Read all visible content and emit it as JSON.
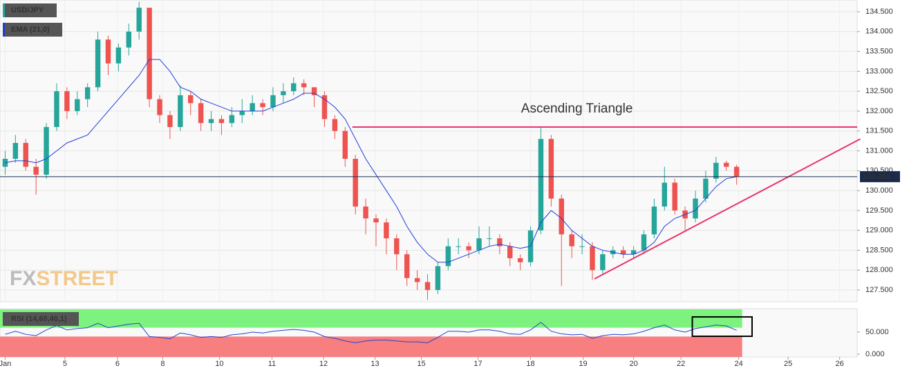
{
  "chart_data": {
    "type": "candlestick",
    "title": "USD/JPY",
    "indicator": "EMA (21,0)",
    "logo": {
      "part1": "FX",
      "part2": "STREET"
    },
    "up_color": "#26a69a",
    "down_color": "#ef5350",
    "ema_color": "#1f3fd6",
    "xlim": [
      -0.5,
      82.7
    ],
    "xticks": [
      {
        "value": 0,
        "label": "Jan"
      },
      {
        "value": 5.8,
        "label": "5"
      },
      {
        "value": 10.9,
        "label": "6"
      },
      {
        "value": 15.3,
        "label": "8"
      },
      {
        "value": 20.8,
        "label": "10"
      },
      {
        "value": 25.9,
        "label": "11"
      },
      {
        "value": 30.9,
        "label": "12"
      },
      {
        "value": 35.9,
        "label": "13"
      },
      {
        "value": 40.4,
        "label": "15"
      },
      {
        "value": 45.9,
        "label": "17"
      },
      {
        "value": 51,
        "label": "18"
      },
      {
        "value": 56.1,
        "label": "19"
      },
      {
        "value": 61,
        "label": "20"
      },
      {
        "value": 65.6,
        "label": "22"
      },
      {
        "value": 71.2,
        "label": "24"
      },
      {
        "value": 76,
        "label": "25"
      },
      {
        "value": 81,
        "label": "26"
      }
    ],
    "ylim": [
      127.205,
      134.795
    ],
    "yticks": [
      {
        "value": 127.5,
        "label": "127.500"
      },
      {
        "value": 128,
        "label": "128.000"
      },
      {
        "value": 128.5,
        "label": "128.500"
      },
      {
        "value": 129,
        "label": "129.000"
      },
      {
        "value": 129.5,
        "label": "129.500"
      },
      {
        "value": 130,
        "label": "130.000"
      },
      {
        "value": 130.5,
        "label": "130.500"
      },
      {
        "value": 131,
        "label": "131.000"
      },
      {
        "value": 131.5,
        "label": "131.500"
      },
      {
        "value": 132,
        "label": "132.000"
      },
      {
        "value": 132.5,
        "label": "132.500"
      },
      {
        "value": 133,
        "label": "133.000"
      },
      {
        "value": 133.5,
        "label": "133.500"
      },
      {
        "value": 134,
        "label": "134.000"
      },
      {
        "value": 134.5,
        "label": "134.500"
      }
    ],
    "grid": true,
    "current_price": {
      "value": 130.351,
      "label": "130.351"
    },
    "candles": [
      [
        130.6,
        131.0,
        130.4,
        130.8
      ],
      [
        130.8,
        131.4,
        130.7,
        131.2
      ],
      [
        131.2,
        131.3,
        130.5,
        130.6
      ],
      [
        130.6,
        130.8,
        129.9,
        130.4
      ],
      [
        130.4,
        131.7,
        130.3,
        131.6
      ],
      [
        131.6,
        132.7,
        131.5,
        132.5
      ],
      [
        132.5,
        132.6,
        131.8,
        132.0
      ],
      [
        132.0,
        132.5,
        131.9,
        132.3
      ],
      [
        132.3,
        132.7,
        132.1,
        132.6
      ],
      [
        132.6,
        134.0,
        132.5,
        133.8
      ],
      [
        133.8,
        133.9,
        132.9,
        133.2
      ],
      [
        133.2,
        133.7,
        133.0,
        133.6
      ],
      [
        133.6,
        134.2,
        133.4,
        134.0
      ],
      [
        134.0,
        134.75,
        133.8,
        134.6
      ],
      [
        134.6,
        134.6,
        132.1,
        132.3
      ],
      [
        132.3,
        132.4,
        131.7,
        131.9
      ],
      [
        131.9,
        132.0,
        131.3,
        131.6
      ],
      [
        131.6,
        132.65,
        131.5,
        132.4
      ],
      [
        132.4,
        132.5,
        131.9,
        132.2
      ],
      [
        132.2,
        132.3,
        131.5,
        131.7
      ],
      [
        131.7,
        132.0,
        131.5,
        131.8
      ],
      [
        131.8,
        131.9,
        131.4,
        131.7
      ],
      [
        131.7,
        132.1,
        131.6,
        131.9
      ],
      [
        131.9,
        132.3,
        131.7,
        132.0
      ],
      [
        132.0,
        132.4,
        131.9,
        132.2
      ],
      [
        132.2,
        132.3,
        131.9,
        132.1
      ],
      [
        132.1,
        132.6,
        132.0,
        132.4
      ],
      [
        132.4,
        132.7,
        132.2,
        132.5
      ],
      [
        132.5,
        132.85,
        132.4,
        132.7
      ],
      [
        132.7,
        132.8,
        132.4,
        132.6
      ],
      [
        132.6,
        132.6,
        132.1,
        132.4
      ],
      [
        132.4,
        132.5,
        131.6,
        131.8
      ],
      [
        131.8,
        131.9,
        131.3,
        131.5
      ],
      [
        131.5,
        131.6,
        130.6,
        130.8
      ],
      [
        130.8,
        130.9,
        129.4,
        129.6
      ],
      [
        129.6,
        129.8,
        128.9,
        129.3
      ],
      [
        129.3,
        129.4,
        128.6,
        129.2
      ],
      [
        129.2,
        129.3,
        128.4,
        128.8
      ],
      [
        128.8,
        128.9,
        128.0,
        128.4
      ],
      [
        128.4,
        128.5,
        127.6,
        127.8
      ],
      [
        127.8,
        128.0,
        127.5,
        127.7
      ],
      [
        127.7,
        127.9,
        127.25,
        127.5
      ],
      [
        127.5,
        128.2,
        127.4,
        128.1
      ],
      [
        128.1,
        128.8,
        128.0,
        128.6
      ],
      [
        128.6,
        128.8,
        128.4,
        128.6
      ],
      [
        128.6,
        128.7,
        128.3,
        128.5
      ],
      [
        128.5,
        129.1,
        128.4,
        128.8
      ],
      [
        128.8,
        129.1,
        128.6,
        128.8
      ],
      [
        128.8,
        128.9,
        128.4,
        128.6
      ],
      [
        128.6,
        128.7,
        128.1,
        128.3
      ],
      [
        128.3,
        128.4,
        128.0,
        128.2
      ],
      [
        128.2,
        129.1,
        128.1,
        129.0
      ],
      [
        129.0,
        131.58,
        128.9,
        131.3
      ],
      [
        131.3,
        131.4,
        129.6,
        129.8
      ],
      [
        129.8,
        129.9,
        127.6,
        128.9
      ],
      [
        128.9,
        129.0,
        128.3,
        128.6
      ],
      [
        128.6,
        128.9,
        128.4,
        128.6
      ],
      [
        128.6,
        128.7,
        127.75,
        128.0
      ],
      [
        128.0,
        128.5,
        127.9,
        128.4
      ],
      [
        128.4,
        128.6,
        128.3,
        128.5
      ],
      [
        128.5,
        128.6,
        128.3,
        128.4
      ],
      [
        128.4,
        128.6,
        128.3,
        128.5
      ],
      [
        128.5,
        129.0,
        128.4,
        128.9
      ],
      [
        128.9,
        129.8,
        128.8,
        129.6
      ],
      [
        129.6,
        130.6,
        129.5,
        130.2
      ],
      [
        130.2,
        130.3,
        129.4,
        129.5
      ],
      [
        129.5,
        129.6,
        129.0,
        129.3
      ],
      [
        129.3,
        130.0,
        129.2,
        129.8
      ],
      [
        129.8,
        130.5,
        129.7,
        130.3
      ],
      [
        130.3,
        130.85,
        130.2,
        130.7
      ],
      [
        130.7,
        130.75,
        130.5,
        130.6
      ],
      [
        130.6,
        130.65,
        130.15,
        130.35
      ]
    ],
    "ema": [
      130.7,
      130.75,
      130.75,
      130.7,
      130.8,
      131.0,
      131.2,
      131.3,
      131.4,
      131.7,
      132.0,
      132.3,
      132.6,
      132.9,
      133.3,
      133.3,
      133.0,
      132.6,
      132.5,
      132.3,
      132.2,
      132.1,
      132.0,
      132.0,
      132.0,
      132.0,
      132.1,
      132.2,
      132.3,
      132.45,
      132.45,
      132.3,
      132.1,
      131.8,
      131.3,
      130.8,
      130.4,
      130.0,
      129.6,
      129.1,
      128.7,
      128.4,
      128.2,
      128.2,
      128.3,
      128.4,
      128.5,
      128.6,
      128.65,
      128.6,
      128.55,
      128.6,
      129.2,
      129.5,
      129.3,
      129.0,
      128.8,
      128.6,
      128.5,
      128.45,
      128.4,
      128.4,
      128.5,
      128.7,
      129.1,
      129.3,
      129.4,
      129.5,
      129.8,
      130.1,
      130.3,
      130.35
    ],
    "annotations": {
      "text": "Ascending Triangle",
      "text_at": [
        55.5,
        132.05
      ],
      "color": "#e8336b",
      "resistance": {
        "value": 131.6,
        "from": 33.7
      },
      "trendline": {
        "from": [
          57.2,
          127.78
        ],
        "to": [
          83,
          131.3
        ]
      }
    },
    "rsi": {
      "label": "RSI (14,60,40,1)",
      "upper": 60,
      "lower": 40,
      "ylim": [
        -6.25,
        103.1
      ],
      "yticks": [
        {
          "value": 0,
          "label": "0.000"
        },
        {
          "value": 50,
          "label": "50.000"
        }
      ],
      "box": {
        "x": [
          66.7,
          72.5
        ],
        "y": [
          84.4,
          40.6
        ]
      },
      "values": [
        45,
        52,
        45,
        42,
        55,
        65,
        55,
        58,
        60,
        70,
        60,
        64,
        68,
        70,
        40,
        38,
        35,
        48,
        44,
        38,
        40,
        38,
        44,
        46,
        50,
        48,
        52,
        54,
        56,
        54,
        50,
        40,
        36,
        30,
        26,
        30,
        32,
        32,
        30,
        28,
        28,
        26,
        38,
        52,
        52,
        50,
        55,
        55,
        52,
        46,
        45,
        55,
        72,
        52,
        46,
        44,
        45,
        36,
        42,
        45,
        44,
        46,
        52,
        60,
        66,
        55,
        50,
        58,
        62,
        66,
        64,
        54
      ]
    }
  }
}
